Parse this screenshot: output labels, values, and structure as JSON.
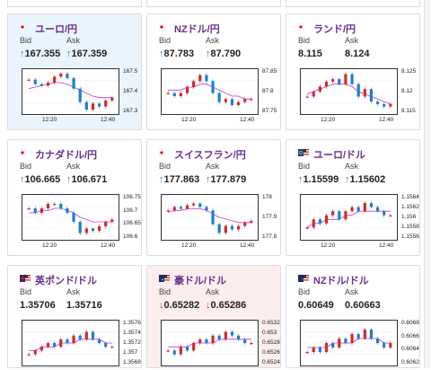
{
  "colors": {
    "up": "#1a7fd4",
    "down": "#d12b2b",
    "title": "#6a2d91",
    "ma": "#cc33cc"
  },
  "cards": [
    {
      "pair": "ユーロ/円",
      "flag": "eu-jp-flag",
      "bid_label": "Bid",
      "ask_label": "Ask",
      "bid": "167.355",
      "ask": "167.359",
      "dir": "up",
      "bg": "blue",
      "yticks": [
        "167.5",
        "167.4",
        "167.3"
      ],
      "xticks": [
        "12:20",
        "12:40"
      ],
      "chart_data": {
        "type": "candlestick",
        "y": [
          167.48,
          167.45,
          167.44,
          167.46,
          167.5,
          167.52,
          167.49,
          167.42,
          167.33,
          167.28,
          167.32,
          167.3,
          167.34,
          167.36
        ],
        "ma": [
          167.42,
          167.43,
          167.44,
          167.45,
          167.46,
          167.46,
          167.45,
          167.43,
          167.41,
          167.39,
          167.37,
          167.36,
          167.36,
          167.36
        ],
        "ylim": [
          167.25,
          167.55
        ]
      }
    },
    {
      "pair": "NZドル/円",
      "flag": "nz-jp-flag",
      "bid_label": "Bid",
      "ask_label": "Ask",
      "bid": "87.783",
      "ask": "87.790",
      "dir": "up",
      "bg": "white",
      "yticks": [
        "87.85",
        "87.8",
        "87.75"
      ],
      "xticks": [
        "12:20",
        "12:40"
      ],
      "chart_data": {
        "type": "candlestick",
        "y": [
          87.8,
          87.79,
          87.8,
          87.82,
          87.84,
          87.86,
          87.84,
          87.8,
          87.77,
          87.78,
          87.76,
          87.77,
          87.78,
          87.78
        ],
        "ma": [
          87.81,
          87.81,
          87.81,
          87.82,
          87.82,
          87.83,
          87.83,
          87.82,
          87.81,
          87.8,
          87.79,
          87.79,
          87.78,
          87.78
        ],
        "ylim": [
          87.73,
          87.88
        ]
      }
    },
    {
      "pair": "ランド/円",
      "flag": "za-jp-flag",
      "bid_label": "Bid",
      "ask_label": "Ask",
      "bid": "8.115",
      "ask": "8.124",
      "dir": "none",
      "bg": "white",
      "yticks": [
        "8.125",
        "8.12",
        "8.115"
      ],
      "xticks": [
        "12:20",
        "12:40"
      ],
      "chart_data": {
        "type": "candlestick",
        "y": [
          8.119,
          8.121,
          8.123,
          8.125,
          8.126,
          8.124,
          8.128,
          8.124,
          8.119,
          8.122,
          8.117,
          8.116,
          8.115,
          8.116
        ],
        "ma": [
          8.12,
          8.121,
          8.122,
          8.123,
          8.124,
          8.124,
          8.124,
          8.123,
          8.121,
          8.12,
          8.119,
          8.118,
          8.117,
          8.116
        ],
        "ylim": [
          8.112,
          8.13
        ]
      }
    },
    {
      "pair": "カナダドル/円",
      "flag": "ca-jp-flag",
      "bid_label": "Bid",
      "ask_label": "Ask",
      "bid": "106.665",
      "ask": "106.671",
      "dir": "up",
      "bg": "white",
      "yticks": [
        "106.75",
        "106.7",
        "106.65",
        "106.6"
      ],
      "xticks": [
        "12:20",
        "12:40"
      ],
      "chart_data": {
        "type": "candlestick",
        "y": [
          106.72,
          106.7,
          106.72,
          106.74,
          106.74,
          106.72,
          106.7,
          106.66,
          106.61,
          106.63,
          106.62,
          106.64,
          106.66,
          106.67
        ],
        "ma": [
          106.7,
          106.7,
          106.71,
          106.71,
          106.72,
          106.72,
          106.71,
          106.7,
          106.68,
          106.67,
          106.66,
          106.66,
          106.66,
          106.66
        ],
        "ylim": [
          106.58,
          106.78
        ]
      }
    },
    {
      "pair": "スイスフラン/円",
      "flag": "ch-jp-flag",
      "bid_label": "Bid",
      "ask_label": "Ask",
      "bid": "177.863",
      "ask": "177.879",
      "dir": "up",
      "bg": "white",
      "yticks": [
        "178",
        "177.9",
        "177.8"
      ],
      "xticks": [
        "12:20",
        "12:40"
      ],
      "chart_data": {
        "type": "candlestick",
        "y": [
          177.93,
          177.95,
          177.94,
          177.96,
          177.97,
          177.95,
          177.93,
          177.85,
          177.8,
          177.84,
          177.82,
          177.84,
          177.86,
          177.87
        ],
        "ma": [
          177.92,
          177.93,
          177.93,
          177.94,
          177.94,
          177.94,
          177.93,
          177.91,
          177.89,
          177.88,
          177.87,
          177.86,
          177.86,
          177.86
        ],
        "ylim": [
          177.76,
          178.02
        ]
      }
    },
    {
      "pair": "ユーロ/ドル",
      "flag": "eu-us-flag",
      "bid_label": "Bid",
      "ask_label": "Ask",
      "bid": "1.15599",
      "ask": "1.15602",
      "dir": "up",
      "bg": "white",
      "yticks": [
        "1.1564",
        "1.1562",
        "1.156",
        "1.1558",
        "1.1556"
      ],
      "xticks": [
        "12:20",
        "12:40"
      ],
      "chart_data": {
        "type": "candlestick",
        "y": [
          1.1557,
          1.1559,
          1.1558,
          1.156,
          1.1561,
          1.1559,
          1.1561,
          1.1562,
          1.1561,
          1.1563,
          1.1562,
          1.1561,
          1.156,
          1.156
        ],
        "ma": [
          1.1557,
          1.1558,
          1.1558,
          1.1559,
          1.1559,
          1.1559,
          1.156,
          1.156,
          1.1561,
          1.1561,
          1.1561,
          1.1561,
          1.1561,
          1.1561
        ],
        "ylim": [
          1.1554,
          1.1565
        ]
      }
    },
    {
      "pair": "英ポンド/ドル",
      "flag": "gb-us-flag",
      "bid_label": "Bid",
      "ask_label": "Ask",
      "bid": "1.35706",
      "ask": "1.35716",
      "dir": "none",
      "bg": "white",
      "yticks": [
        "1.3576",
        "1.3574",
        "1.3572",
        "1.357",
        "1.3568"
      ],
      "xticks": [],
      "chart_data": {
        "type": "candlestick",
        "y": [
          1.3569,
          1.357,
          1.3571,
          1.3572,
          1.3571,
          1.3573,
          1.3572,
          1.3574,
          1.3573,
          1.3575,
          1.3573,
          1.3572,
          1.3571,
          1.3571
        ],
        "ma": [
          1.357,
          1.357,
          1.3571,
          1.3571,
          1.3571,
          1.3572,
          1.3572,
          1.3572,
          1.3573,
          1.3573,
          1.3573,
          1.3573,
          1.3572,
          1.3572
        ],
        "ylim": [
          1.3566,
          1.3578
        ]
      }
    },
    {
      "pair": "豪ドル/ドル",
      "flag": "au-us-flag",
      "bid_label": "Bid",
      "ask_label": "Ask",
      "bid": "0.65282",
      "ask": "0.65286",
      "dir": "down",
      "bg": "pink",
      "yticks": [
        "0.6532",
        "0.653",
        "0.6528",
        "0.6526",
        "0.6524"
      ],
      "xticks": [],
      "chart_data": {
        "type": "candlestick",
        "y": [
          0.6526,
          0.6525,
          0.6527,
          0.6526,
          0.6528,
          0.6529,
          0.6528,
          0.653,
          0.6529,
          0.6531,
          0.653,
          0.6529,
          0.6528,
          0.6528
        ],
        "ma": [
          0.6527,
          0.6527,
          0.6527,
          0.6527,
          0.6528,
          0.6528,
          0.6528,
          0.6528,
          0.6529,
          0.6529,
          0.6529,
          0.6529,
          0.6529,
          0.6529
        ],
        "ylim": [
          0.6522,
          0.6534
        ]
      }
    },
    {
      "pair": "NZドル/ドル",
      "flag": "nz-us-flag",
      "bid_label": "Bid",
      "ask_label": "Ask",
      "bid": "0.60649",
      "ask": "0.60663",
      "dir": "none",
      "bg": "white",
      "yticks": [
        "0.6068",
        "0.6066",
        "0.6064",
        "0.6062"
      ],
      "xticks": [],
      "chart_data": {
        "type": "candlestick",
        "y": [
          0.6063,
          0.6064,
          0.6063,
          0.6065,
          0.6064,
          0.6066,
          0.6065,
          0.6067,
          0.6066,
          0.6068,
          0.6066,
          0.6065,
          0.6064,
          0.6065
        ],
        "ma": [
          0.6064,
          0.6064,
          0.6064,
          0.6064,
          0.6065,
          0.6065,
          0.6065,
          0.6065,
          0.6066,
          0.6066,
          0.6066,
          0.6066,
          0.6065,
          0.6065
        ],
        "ylim": [
          0.606,
          0.607
        ]
      }
    }
  ]
}
